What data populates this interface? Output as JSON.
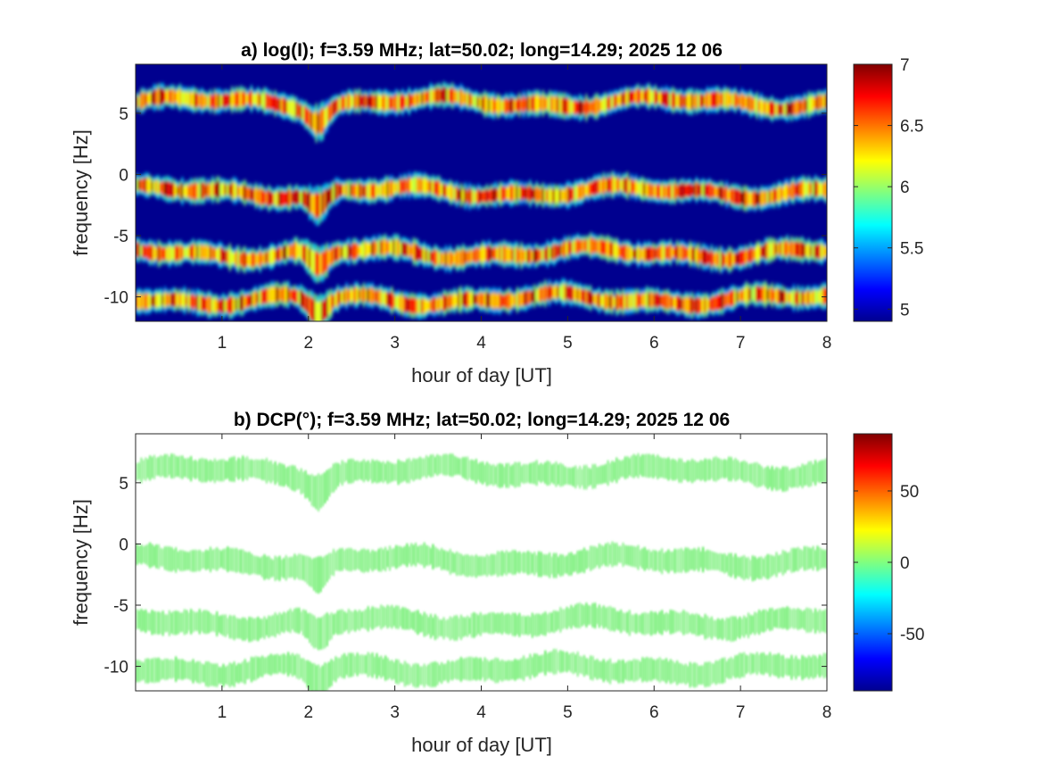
{
  "chart_data": [
    {
      "type": "heatmap",
      "panel": "a",
      "title": "a) log(I); f=3.59 MHz;  lat=50.02; long=14.29; 2025 12 06",
      "xlabel": "hour of day [UT]",
      "ylabel": "frequency [Hz]",
      "xlim": [
        0,
        8
      ],
      "ylim": [
        -12,
        9
      ],
      "xticks": [
        1,
        2,
        3,
        4,
        5,
        6,
        7,
        8
      ],
      "yticks": [
        -10,
        -5,
        0,
        5
      ],
      "background": "#00008f",
      "colorbar": {
        "range": [
          4.9,
          7.0
        ],
        "ticks": [
          5,
          5.5,
          6,
          6.5,
          7
        ],
        "colormap": "jet"
      },
      "bands": [
        {
          "center_hz": 5.9,
          "peak_value": 6.9
        },
        {
          "center_hz": -1.4,
          "peak_value": 6.7
        },
        {
          "center_hz": -6.4,
          "peak_value": 6.9
        },
        {
          "center_hz": -10.2,
          "peak_value": 6.7
        }
      ],
      "disturbance_hour": 2.1
    },
    {
      "type": "heatmap",
      "panel": "b",
      "title": "b) DCP(°); f=3.59 MHz;  lat=50.02; long=14.29; 2025 12 06",
      "xlabel": "hour of day [UT]",
      "ylabel": "frequency [Hz]",
      "xlim": [
        0,
        8
      ],
      "ylim": [
        -12,
        9
      ],
      "xticks": [
        1,
        2,
        3,
        4,
        5,
        6,
        7,
        8
      ],
      "yticks": [
        -10,
        -5,
        0,
        5
      ],
      "background": "#ffffff",
      "colorbar": {
        "range": [
          -90,
          90
        ],
        "ticks": [
          -50,
          0,
          50
        ],
        "colormap": "jet"
      },
      "bands": [
        {
          "center_hz": 5.9,
          "value": 5
        },
        {
          "center_hz": -1.4,
          "value": 5
        },
        {
          "center_hz": -6.4,
          "value": 5
        },
        {
          "center_hz": -10.2,
          "value": 5
        }
      ],
      "disturbance_hour": 2.1
    }
  ]
}
